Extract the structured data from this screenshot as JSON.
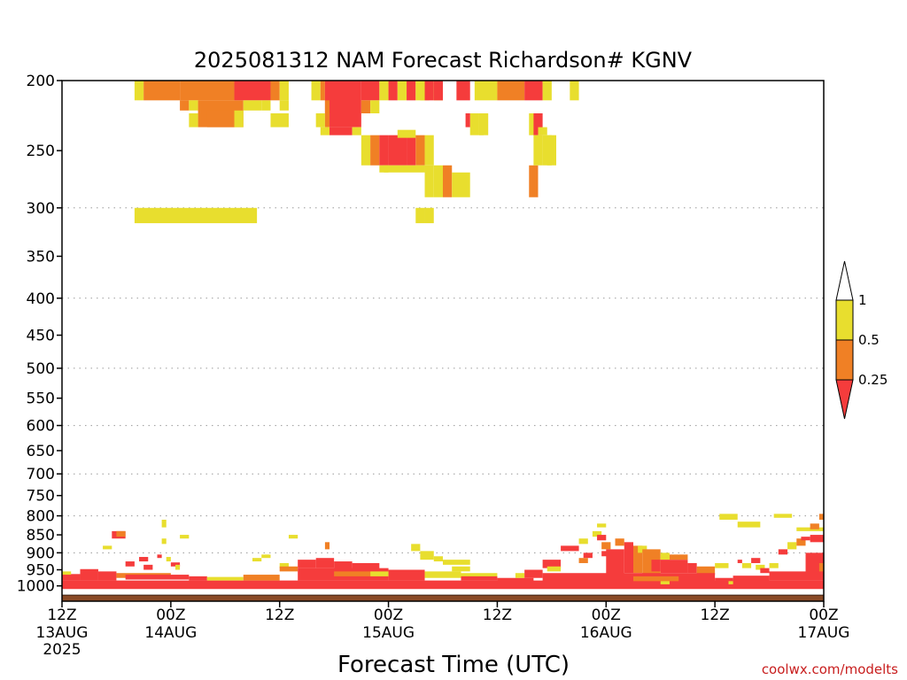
{
  "page": {
    "background": "#ffffff"
  },
  "chart_data": {
    "type": "heatmap",
    "title": "2025081312 NAM Forecast Richardson# KGNV",
    "xlabel": "Forecast Time (UTC)",
    "ylabel": "",
    "watermark": "coolwx.com/modelts",
    "x_ticks": [
      {
        "hour": 0,
        "label": "12Z",
        "sub": "13AUG",
        "sub2": "2025"
      },
      {
        "hour": 12,
        "label": "00Z",
        "sub": "14AUG",
        "sub2": ""
      },
      {
        "hour": 24,
        "label": "12Z",
        "sub": "",
        "sub2": ""
      },
      {
        "hour": 36,
        "label": "00Z",
        "sub": "15AUG",
        "sub2": ""
      },
      {
        "hour": 48,
        "label": "12Z",
        "sub": "",
        "sub2": ""
      },
      {
        "hour": 60,
        "label": "00Z",
        "sub": "16AUG",
        "sub2": ""
      },
      {
        "hour": 72,
        "label": "12Z",
        "sub": "",
        "sub2": ""
      },
      {
        "hour": 84,
        "label": "00Z",
        "sub": "17AUG",
        "sub2": ""
      }
    ],
    "x_range_hours": [
      0,
      84
    ],
    "y_axis": {
      "scale": "log-pressure",
      "range_hPa": [
        1050,
        200
      ],
      "ticks": [
        200,
        250,
        300,
        350,
        400,
        450,
        500,
        550,
        600,
        650,
        700,
        750,
        800,
        850,
        900,
        950,
        1000
      ]
    },
    "grid_levels": [
      300,
      400,
      500,
      600,
      700,
      800,
      900
    ],
    "ground": {
      "color": "#8a4a26",
      "top_hPa": 1030
    },
    "colorbar": {
      "bounds": [
        "0.25",
        "0.5",
        "1"
      ],
      "colors": [
        "#f53c3c",
        "#f08025",
        "#e8de2e"
      ],
      "over_color": "#ffffff",
      "under_color": "#f53c3c"
    },
    "categories": {
      "r": "Ri < 0.25",
      "o": "0.25 - 0.5",
      "y": "0.5 - 1"
    },
    "category_colors": {
      "r": "#f53c3c",
      "o": "#f08025",
      "y": "#e8de2e"
    },
    "cells": [
      [
        "y",
        8.0,
        9.0,
        200,
        213
      ],
      [
        "o",
        9.0,
        13.0,
        200,
        213
      ],
      [
        "o",
        13.0,
        19.0,
        200,
        213
      ],
      [
        "r",
        19.0,
        23.0,
        200,
        213
      ],
      [
        "o",
        23.0,
        24.0,
        200,
        213
      ],
      [
        "y",
        24.0,
        25.0,
        200,
        213
      ],
      [
        "o",
        13.0,
        14.0,
        213,
        220
      ],
      [
        "y",
        14.0,
        15.0,
        213,
        220
      ],
      [
        "o",
        15.0,
        20.0,
        213,
        232
      ],
      [
        "y",
        20.0,
        22.0,
        213,
        220
      ],
      [
        "y",
        22.0,
        23.0,
        213,
        220
      ],
      [
        "y",
        24.0,
        25.0,
        213,
        220
      ],
      [
        "o",
        16.0,
        19.0,
        220,
        232
      ],
      [
        "y",
        19.0,
        20.0,
        220,
        232
      ],
      [
        "y",
        23.0,
        25.0,
        222,
        232
      ],
      [
        "y",
        14.0,
        15.0,
        222,
        232
      ],
      [
        "y",
        27.5,
        28.5,
        200,
        213
      ],
      [
        "o",
        28.5,
        29.0,
        200,
        213
      ],
      [
        "r",
        29.0,
        33.0,
        200,
        222
      ],
      [
        "r",
        33.0,
        35.0,
        200,
        213
      ],
      [
        "y",
        35.0,
        36.0,
        200,
        213
      ],
      [
        "r",
        36.0,
        37.0,
        200,
        213
      ],
      [
        "y",
        37.0,
        38.0,
        200,
        213
      ],
      [
        "r",
        38.0,
        39.0,
        200,
        213
      ],
      [
        "y",
        39.0,
        40.0,
        200,
        213
      ],
      [
        "y",
        39.5,
        40.5,
        200,
        213
      ],
      [
        "r",
        40.0,
        41.0,
        200,
        213
      ],
      [
        "y",
        41.0,
        42.0,
        200,
        213
      ],
      [
        "r",
        41.0,
        42.0,
        200,
        213
      ],
      [
        "r",
        43.5,
        45.0,
        200,
        213
      ],
      [
        "y",
        45.5,
        48.0,
        200,
        213
      ],
      [
        "o",
        48.0,
        51.0,
        200,
        213
      ],
      [
        "r",
        51.0,
        53.0,
        200,
        213
      ],
      [
        "y",
        53.0,
        54.0,
        200,
        213
      ],
      [
        "y",
        56.0,
        57.0,
        200,
        213
      ],
      [
        "y",
        28.0,
        29.0,
        222,
        232
      ],
      [
        "o",
        29.0,
        29.5,
        213,
        232
      ],
      [
        "r",
        29.5,
        33.0,
        222,
        232
      ],
      [
        "o",
        33.0,
        34.0,
        213,
        222
      ],
      [
        "y",
        34.0,
        35.0,
        213,
        222
      ],
      [
        "y",
        28.5,
        29.5,
        232,
        238
      ],
      [
        "r",
        29.5,
        32.0,
        232,
        238
      ],
      [
        "y",
        32.0,
        33.0,
        232,
        238
      ],
      [
        "y",
        45.0,
        46.0,
        222,
        238
      ],
      [
        "r",
        44.5,
        45.0,
        222,
        232
      ],
      [
        "y",
        46.0,
        46.5,
        222,
        238
      ],
      [
        "y",
        46.0,
        47.0,
        222,
        238
      ],
      [
        "y",
        51.5,
        52.5,
        222,
        238
      ],
      [
        "r",
        52.0,
        53.0,
        222,
        238
      ],
      [
        "y",
        52.5,
        53.5,
        232,
        238
      ],
      [
        "y",
        33.0,
        34.0,
        238,
        262
      ],
      [
        "o",
        34.0,
        35.0,
        238,
        262
      ],
      [
        "r",
        35.0,
        36.0,
        238,
        262
      ],
      [
        "r",
        36.0,
        38.0,
        238,
        262
      ],
      [
        "r",
        38.0,
        39.0,
        238,
        262
      ],
      [
        "o",
        39.0,
        40.0,
        238,
        262
      ],
      [
        "y",
        40.0,
        41.0,
        238,
        262
      ],
      [
        "y",
        37.0,
        39.0,
        234,
        240
      ],
      [
        "y",
        35.0,
        36.0,
        262,
        268
      ],
      [
        "y",
        35.5,
        40.0,
        262,
        268
      ],
      [
        "y",
        40.0,
        41.0,
        262,
        290
      ],
      [
        "y",
        41.0,
        42.0,
        262,
        290
      ],
      [
        "o",
        42.0,
        43.0,
        262,
        290
      ],
      [
        "y",
        43.0,
        45.0,
        268,
        290
      ],
      [
        "o",
        51.5,
        52.5,
        262,
        290
      ],
      [
        "y",
        53.5,
        54.5,
        238,
        262
      ],
      [
        "y",
        52.0,
        53.0,
        238,
        262
      ],
      [
        "y",
        53.0,
        54.0,
        238,
        262
      ],
      [
        "y",
        8.0,
        21.5,
        300,
        315
      ],
      [
        "y",
        39.0,
        40.0,
        300,
        315
      ],
      [
        "y",
        40.0,
        41.0,
        300,
        315
      ],
      [
        "r",
        0.0,
        84.0,
        983,
        1010
      ],
      [
        "r",
        0.0,
        2.0,
        963,
        983
      ],
      [
        "y",
        0.0,
        1.0,
        955,
        965
      ],
      [
        "r",
        2.0,
        4.0,
        948,
        983
      ],
      [
        "r",
        4.0,
        6.0,
        955,
        983
      ],
      [
        "y",
        4.5,
        5.5,
        880,
        890
      ],
      [
        "r",
        5.5,
        7.0,
        840,
        860
      ],
      [
        "o",
        6.0,
        7.0,
        840,
        855
      ],
      [
        "r",
        8.5,
        9.5,
        912,
        925
      ],
      [
        "r",
        7.0,
        8.0,
        925,
        940
      ],
      [
        "r",
        9.0,
        10.0,
        935,
        950
      ],
      [
        "r",
        10.5,
        11.0,
        905,
        915
      ],
      [
        "y",
        11.0,
        11.5,
        810,
        830
      ],
      [
        "y",
        11.0,
        11.5,
        860,
        875
      ],
      [
        "y",
        11.5,
        12.0,
        912,
        925
      ],
      [
        "r",
        12.0,
        13.0,
        928,
        940
      ],
      [
        "y",
        12.5,
        13.0,
        935,
        950
      ],
      [
        "y",
        13.0,
        14.0,
        850,
        860
      ],
      [
        "o",
        6.0,
        12.0,
        960,
        975
      ],
      [
        "r",
        7.0,
        14.0,
        965,
        980
      ],
      [
        "r",
        14.0,
        16.0,
        970,
        983
      ],
      [
        "y",
        16.0,
        20.0,
        972,
        983
      ],
      [
        "o",
        20.0,
        24.0,
        965,
        983
      ],
      [
        "y",
        21.0,
        22.0,
        915,
        925
      ],
      [
        "y",
        22.0,
        23.0,
        905,
        915
      ],
      [
        "y",
        25.0,
        26.0,
        850,
        860
      ],
      [
        "y",
        24.0,
        25.0,
        930,
        945
      ],
      [
        "o",
        24.0,
        26.0,
        940,
        955
      ],
      [
        "r",
        26.0,
        28.0,
        920,
        945
      ],
      [
        "r",
        28.0,
        30.0,
        915,
        945
      ],
      [
        "o",
        29.0,
        29.5,
        870,
        890
      ],
      [
        "r",
        30.0,
        32.0,
        925,
        960
      ],
      [
        "r",
        32.0,
        35.0,
        930,
        960
      ],
      [
        "r",
        26.0,
        36.0,
        945,
        983
      ],
      [
        "o",
        30.0,
        34.0,
        955,
        970
      ],
      [
        "y",
        34.0,
        36.0,
        955,
        970
      ],
      [
        "y",
        38.5,
        39.5,
        875,
        895
      ],
      [
        "y",
        39.5,
        41.0,
        895,
        920
      ],
      [
        "y",
        41.0,
        42.0,
        910,
        925
      ],
      [
        "y",
        42.0,
        45.0,
        920,
        935
      ],
      [
        "y",
        43.0,
        45.0,
        940,
        955
      ],
      [
        "r",
        36.0,
        40.0,
        950,
        983
      ],
      [
        "y",
        40.0,
        44.0,
        955,
        975
      ],
      [
        "y",
        44.0,
        48.0,
        960,
        975
      ],
      [
        "r",
        44.0,
        48.0,
        970,
        983
      ],
      [
        "r",
        48.0,
        52.0,
        975,
        995
      ],
      [
        "y",
        50.0,
        51.0,
        960,
        975
      ],
      [
        "r",
        51.0,
        53.0,
        950,
        975
      ],
      [
        "r",
        53.0,
        55.0,
        920,
        945
      ],
      [
        "y",
        53.5,
        55.0,
        940,
        955
      ],
      [
        "r",
        55.0,
        57.0,
        880,
        895
      ],
      [
        "y",
        57.0,
        58.0,
        860,
        875
      ],
      [
        "r",
        57.5,
        58.5,
        900,
        915
      ],
      [
        "o",
        57.0,
        58.0,
        915,
        930
      ],
      [
        "y",
        58.5,
        59.5,
        840,
        855
      ],
      [
        "y",
        59.0,
        60.0,
        820,
        830
      ],
      [
        "r",
        59.0,
        60.0,
        850,
        865
      ],
      [
        "o",
        59.5,
        60.5,
        870,
        890
      ],
      [
        "r",
        59.5,
        60.5,
        895,
        910
      ],
      [
        "r",
        60.0,
        62.0,
        890,
        975
      ],
      [
        "o",
        61.0,
        62.0,
        860,
        880
      ],
      [
        "r",
        62.0,
        63.0,
        870,
        960
      ],
      [
        "o",
        63.0,
        64.0,
        880,
        960
      ],
      [
        "y",
        63.5,
        64.5,
        880,
        900
      ],
      [
        "o",
        64.0,
        66.0,
        890,
        970
      ],
      [
        "r",
        65.0,
        66.0,
        920,
        955
      ],
      [
        "y",
        66.0,
        67.0,
        900,
        920
      ],
      [
        "r",
        66.0,
        69.0,
        920,
        960
      ],
      [
        "o",
        67.0,
        69.0,
        905,
        920
      ],
      [
        "r",
        69.0,
        70.0,
        930,
        960
      ],
      [
        "o",
        70.0,
        72.0,
        940,
        965
      ],
      [
        "y",
        72.0,
        73.5,
        930,
        945
      ],
      [
        "r",
        53.0,
        72.0,
        960,
        995
      ],
      [
        "o",
        63.0,
        68.0,
        970,
        985
      ],
      [
        "y",
        66.0,
        67.0,
        985,
        995
      ],
      [
        "r",
        72.0,
        74.0,
        975,
        995
      ],
      [
        "y",
        73.5,
        74.0,
        985,
        995
      ],
      [
        "r",
        74.0,
        78.0,
        968,
        985
      ],
      [
        "r",
        74.5,
        75.0,
        920,
        930
      ],
      [
        "y",
        75.0,
        76.0,
        930,
        945
      ],
      [
        "r",
        76.0,
        77.0,
        915,
        930
      ],
      [
        "y",
        76.5,
        77.5,
        935,
        950
      ],
      [
        "r",
        77.0,
        78.0,
        945,
        960
      ],
      [
        "y",
        78.0,
        79.0,
        930,
        945
      ],
      [
        "r",
        79.0,
        80.0,
        890,
        905
      ],
      [
        "y",
        80.0,
        81.0,
        870,
        890
      ],
      [
        "o",
        81.0,
        82.0,
        860,
        880
      ],
      [
        "r",
        81.5,
        82.5,
        855,
        865
      ],
      [
        "r",
        82.5,
        84.0,
        850,
        870
      ],
      [
        "y",
        81.0,
        84.0,
        830,
        840
      ],
      [
        "o",
        82.5,
        83.5,
        820,
        835
      ],
      [
        "o",
        83.5,
        84.0,
        795,
        810
      ],
      [
        "r",
        82.0,
        84.0,
        900,
        970
      ],
      [
        "o",
        83.5,
        84.0,
        930,
        960
      ],
      [
        "r",
        78.0,
        84.0,
        955,
        983
      ],
      [
        "y",
        72.5,
        74.5,
        795,
        810
      ],
      [
        "y",
        74.5,
        77.0,
        815,
        830
      ],
      [
        "y",
        78.5,
        80.5,
        795,
        805
      ]
    ]
  }
}
